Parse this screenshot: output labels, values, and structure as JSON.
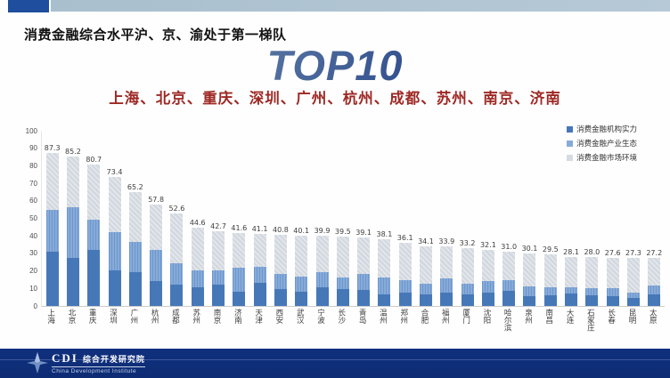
{
  "slide": {
    "header_title": "消费金融综合水平沪、京、渝处于第一梯队",
    "top10_label": "TOP10",
    "top10_cities": "上海、北京、重庆、深圳、广州、杭州、成都、苏州、南京、济南"
  },
  "colors": {
    "top_accent": "#1e4e9d",
    "top_band": "#b5c7d4",
    "top10_gradient_start": "#9db0da",
    "top10_gradient_end": "#17347f",
    "subtitle_red": "#9d2824",
    "series1": "#4678b8",
    "series2": "#86abd9",
    "series3": "#d6dbe2",
    "footer_bg": "#10307e"
  },
  "chart_data": {
    "type": "bar",
    "stacked": true,
    "grid": false,
    "legend_position": "top-right",
    "value_labels": "totals shown above each bar",
    "ylim": [
      0,
      100
    ],
    "yticks": [
      0,
      10,
      20,
      30,
      40,
      50,
      60,
      70,
      80,
      90,
      100
    ],
    "categories": [
      "上海",
      "北京",
      "重庆",
      "深圳",
      "广州",
      "杭州",
      "成都",
      "苏州",
      "南京",
      "济南",
      "天津",
      "西安",
      "武汉",
      "宁波",
      "长沙",
      "青岛",
      "温州",
      "郑州",
      "合肥",
      "福州",
      "厦门",
      "沈阳",
      "哈尔滨",
      "泉州",
      "南昌",
      "大连",
      "石家庄",
      "长春",
      "昆明",
      "太原"
    ],
    "totals": [
      87.3,
      85.2,
      80.7,
      73.4,
      65.2,
      57.8,
      52.6,
      44.6,
      42.7,
      41.6,
      41.1,
      40.8,
      40.1,
      39.9,
      39.5,
      39.1,
      38.1,
      36.1,
      34.1,
      33.9,
      33.2,
      32.1,
      31.0,
      30.1,
      29.5,
      28.1,
      28.0,
      27.6,
      27.3,
      27.2
    ],
    "series": [
      {
        "name": "消费金融机构实力",
        "values": [
          30.8,
          27.4,
          32.0,
          20.5,
          19.5,
          14.0,
          12.0,
          10.5,
          12.0,
          8.0,
          13.3,
          9.6,
          8.3,
          10.5,
          9.6,
          9.1,
          6.6,
          7.8,
          6.6,
          7.5,
          6.6,
          7.8,
          8.8,
          5.4,
          6.1,
          7.1,
          6.1,
          5.8,
          4.4,
          6.6
        ]
      },
      {
        "name": "消费金融产业生态",
        "values": [
          24.2,
          29.1,
          17.5,
          21.5,
          17.0,
          18.0,
          12.5,
          10.0,
          8.5,
          14.0,
          9.0,
          8.5,
          8.5,
          8.8,
          6.9,
          9.4,
          9.7,
          6.8,
          6.3,
          8.1,
          6.3,
          6.5,
          5.8,
          5.8,
          4.8,
          3.8,
          3.9,
          4.2,
          3.4,
          5.1
        ]
      },
      {
        "name": "消费金融市场环境",
        "values": [
          32.3,
          28.7,
          31.2,
          31.4,
          28.7,
          25.8,
          28.1,
          24.1,
          22.2,
          19.6,
          18.8,
          22.7,
          23.3,
          20.6,
          23.0,
          20.6,
          21.8,
          21.5,
          21.2,
          18.3,
          20.3,
          17.8,
          16.4,
          18.9,
          18.6,
          17.2,
          18.0,
          17.6,
          19.5,
          15.5
        ]
      }
    ]
  },
  "footer": {
    "logo_text": "CDI",
    "logo_cn": "综合开发研究院",
    "logo_en": "China Development Institute"
  }
}
